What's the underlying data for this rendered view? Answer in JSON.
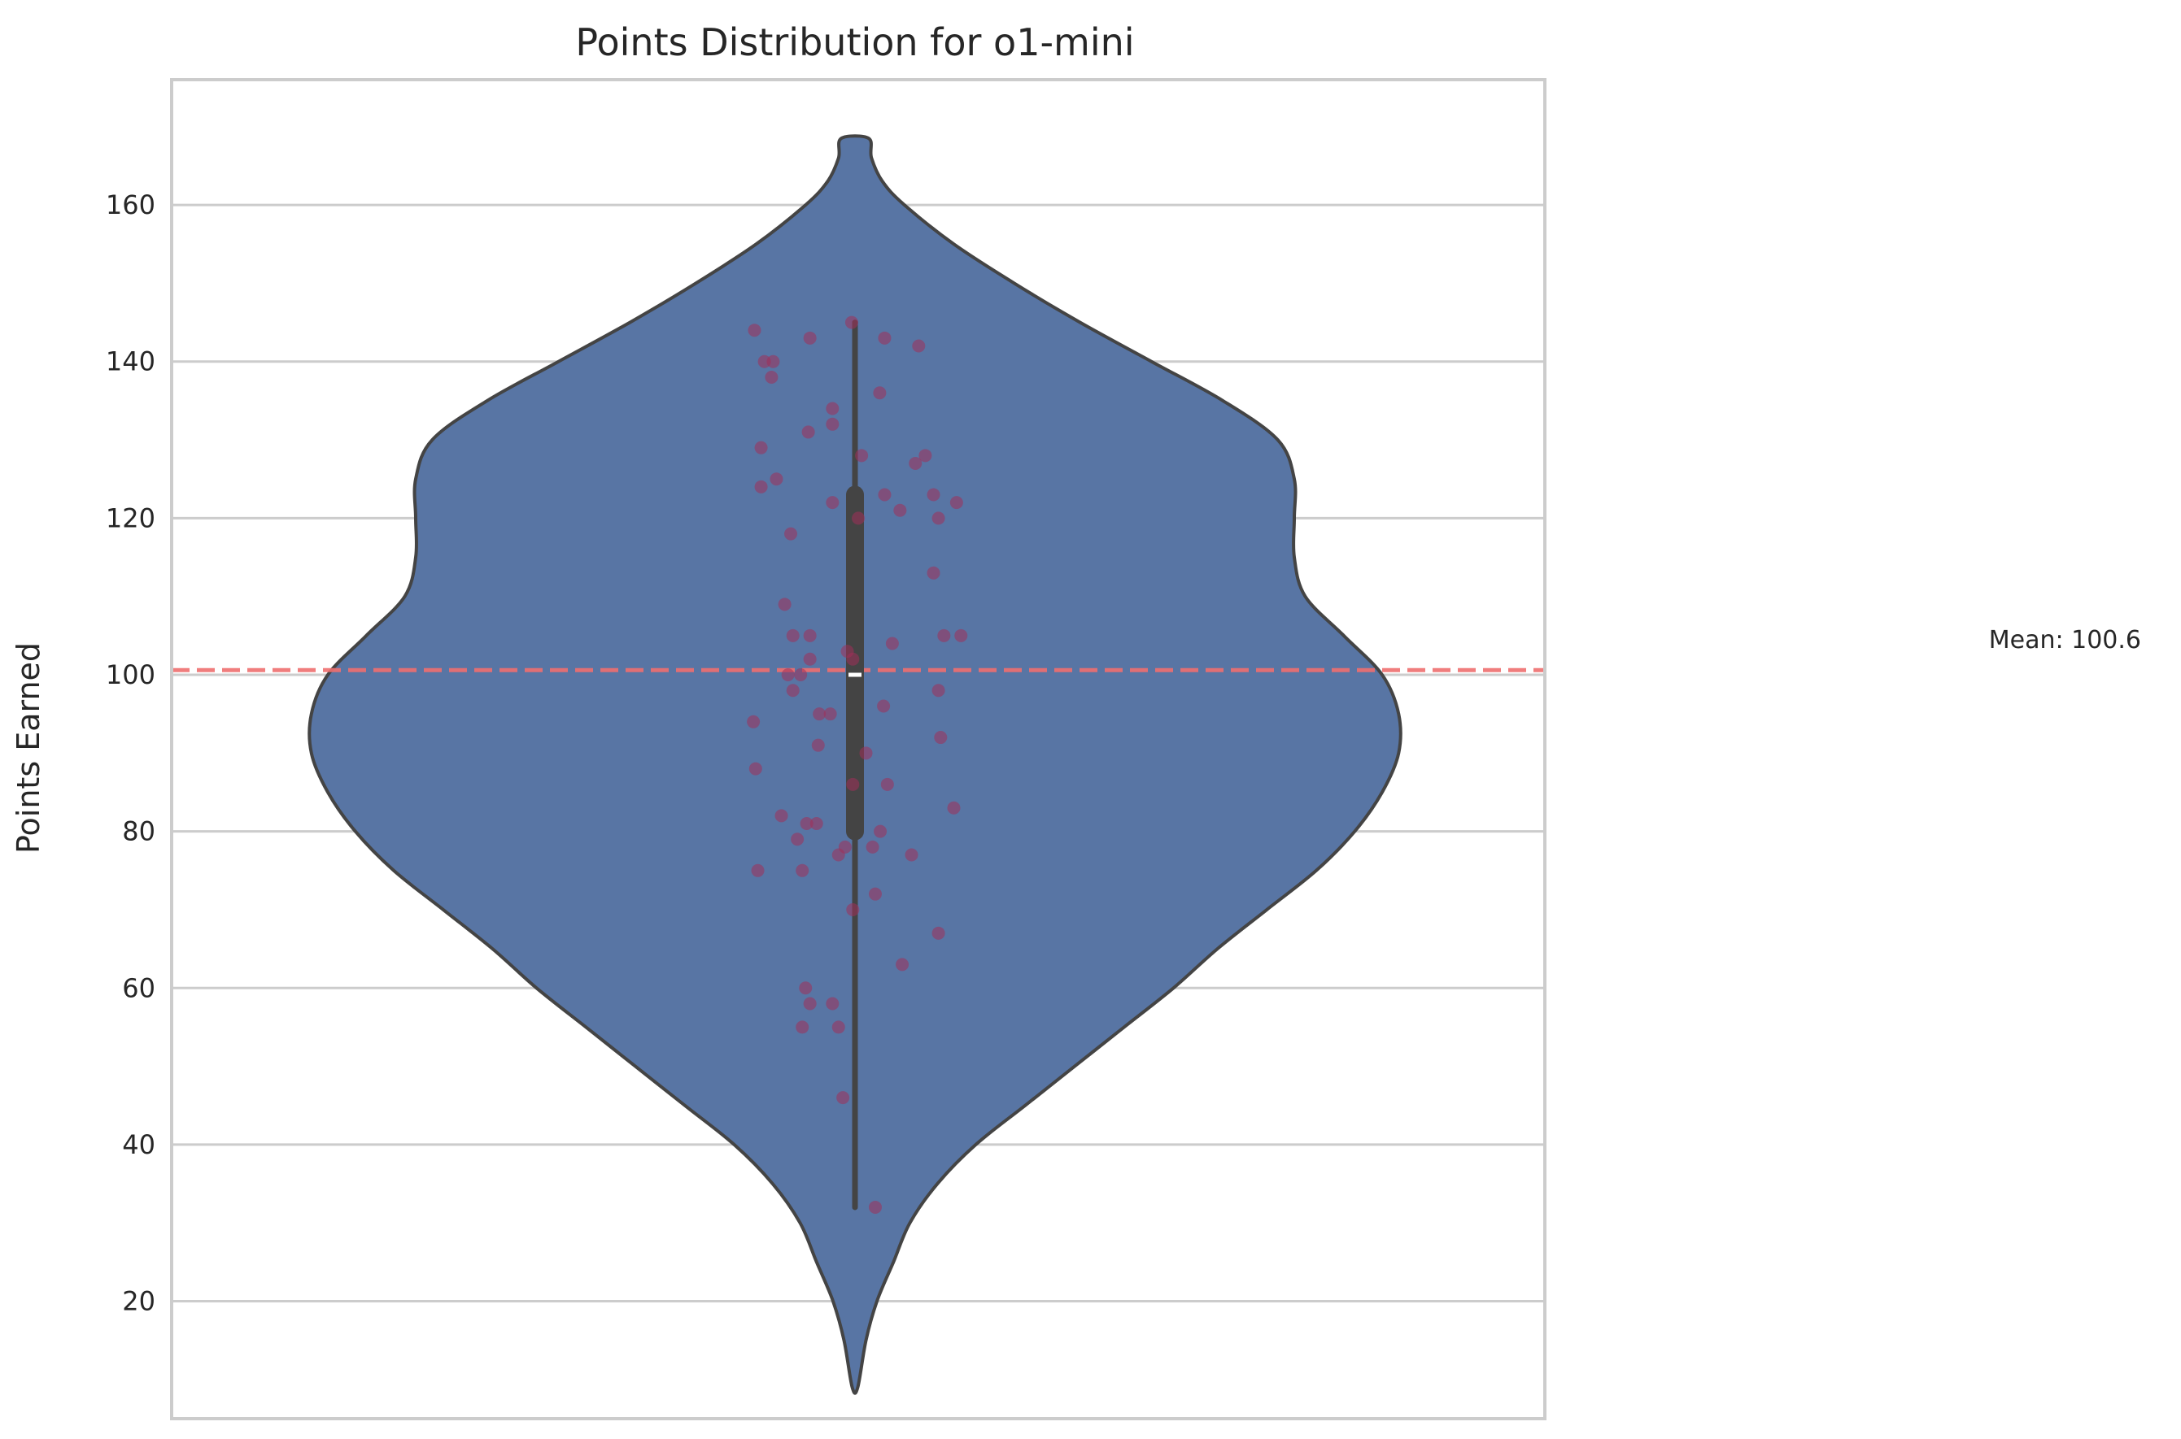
{
  "chart_data": {
    "type": "violin",
    "title": "Points Distribution for o1-mini",
    "xlabel": "",
    "ylabel": "Points Earned",
    "ylim": [
      5,
      176
    ],
    "yticks": [
      20,
      40,
      60,
      80,
      100,
      120,
      140,
      160
    ],
    "grid": true,
    "colors": {
      "violin_fill": "#5875a4",
      "violin_edge": "#444444",
      "box": "#444444",
      "median": "#ffffff",
      "points": "#a0305a",
      "mean_line": "#ef6f6f",
      "grid": "#cccccc",
      "frame": "#cccccc"
    },
    "box": {
      "q1": 80,
      "median": 100,
      "q3": 123,
      "whisker_low": 32,
      "whisker_high": 145
    },
    "mean": {
      "value": 100.6,
      "label": "Mean: 100.6"
    },
    "violin_profile": {
      "y": [
        9,
        15,
        20,
        25,
        30,
        35,
        40,
        45,
        50,
        55,
        60,
        65,
        70,
        75,
        80,
        85,
        90,
        95,
        100,
        105,
        110,
        115,
        120,
        125,
        130,
        135,
        140,
        145,
        150,
        155,
        160,
        163,
        166,
        168.5
      ],
      "half_width": [
        0.005,
        0.02,
        0.04,
        0.07,
        0.1,
        0.15,
        0.22,
        0.31,
        0.4,
        0.49,
        0.58,
        0.66,
        0.75,
        0.84,
        0.91,
        0.96,
        0.99,
        0.99,
        0.96,
        0.89,
        0.82,
        0.8,
        0.8,
        0.8,
        0.77,
        0.67,
        0.54,
        0.41,
        0.29,
        0.18,
        0.09,
        0.05,
        0.03,
        0.025
      ]
    },
    "points": [
      {
        "x": -0.183,
        "y": 144
      },
      {
        "x": -0.165,
        "y": 140
      },
      {
        "x": -0.149,
        "y": 140
      },
      {
        "x": -0.152,
        "y": 138
      },
      {
        "x": -0.082,
        "y": 143
      },
      {
        "x": -0.006,
        "y": 145
      },
      {
        "x": 0.054,
        "y": 143
      },
      {
        "x": 0.116,
        "y": 142
      },
      {
        "x": 0.045,
        "y": 136
      },
      {
        "x": -0.041,
        "y": 134
      },
      {
        "x": -0.041,
        "y": 132
      },
      {
        "x": -0.085,
        "y": 131
      },
      {
        "x": -0.171,
        "y": 129
      },
      {
        "x": 0.012,
        "y": 128
      },
      {
        "x": 0.128,
        "y": 128
      },
      {
        "x": 0.11,
        "y": 127
      },
      {
        "x": -0.143,
        "y": 125
      },
      {
        "x": -0.171,
        "y": 124
      },
      {
        "x": 0.054,
        "y": 123
      },
      {
        "x": 0.143,
        "y": 123
      },
      {
        "x": -0.041,
        "y": 122
      },
      {
        "x": 0.185,
        "y": 122
      },
      {
        "x": 0.082,
        "y": 121
      },
      {
        "x": 0.152,
        "y": 120
      },
      {
        "x": 0.006,
        "y": 120
      },
      {
        "x": -0.117,
        "y": 118
      },
      {
        "x": 0.143,
        "y": 113
      },
      {
        "x": -0.128,
        "y": 109
      },
      {
        "x": -0.113,
        "y": 105
      },
      {
        "x": -0.082,
        "y": 105
      },
      {
        "x": 0.162,
        "y": 105
      },
      {
        "x": 0.193,
        "y": 105
      },
      {
        "x": 0.068,
        "y": 104
      },
      {
        "x": -0.014,
        "y": 103
      },
      {
        "x": -0.004,
        "y": 102
      },
      {
        "x": -0.082,
        "y": 102
      },
      {
        "x": -0.122,
        "y": 100
      },
      {
        "x": -0.099,
        "y": 100
      },
      {
        "x": -0.113,
        "y": 98
      },
      {
        "x": 0.152,
        "y": 98
      },
      {
        "x": 0.052,
        "y": 96
      },
      {
        "x": -0.065,
        "y": 95
      },
      {
        "x": -0.045,
        "y": 95
      },
      {
        "x": -0.185,
        "y": 94
      },
      {
        "x": 0.156,
        "y": 92
      },
      {
        "x": -0.067,
        "y": 91
      },
      {
        "x": 0.02,
        "y": 90
      },
      {
        "x": -0.181,
        "y": 88
      },
      {
        "x": -0.004,
        "y": 86
      },
      {
        "x": 0.059,
        "y": 86
      },
      {
        "x": 0.18,
        "y": 83
      },
      {
        "x": -0.134,
        "y": 82
      },
      {
        "x": -0.088,
        "y": 81
      },
      {
        "x": -0.07,
        "y": 81
      },
      {
        "x": 0.046,
        "y": 80
      },
      {
        "x": -0.105,
        "y": 79
      },
      {
        "x": 0.032,
        "y": 78
      },
      {
        "x": -0.018,
        "y": 78
      },
      {
        "x": -0.03,
        "y": 77
      },
      {
        "x": 0.103,
        "y": 77
      },
      {
        "x": -0.177,
        "y": 75
      },
      {
        "x": -0.096,
        "y": 75
      },
      {
        "x": 0.037,
        "y": 72
      },
      {
        "x": -0.004,
        "y": 70
      },
      {
        "x": 0.152,
        "y": 67
      },
      {
        "x": 0.086,
        "y": 63
      },
      {
        "x": -0.09,
        "y": 60
      },
      {
        "x": -0.082,
        "y": 58
      },
      {
        "x": -0.041,
        "y": 58
      },
      {
        "x": -0.096,
        "y": 55
      },
      {
        "x": -0.03,
        "y": 55
      },
      {
        "x": -0.022,
        "y": 46
      },
      {
        "x": 0.037,
        "y": 32
      }
    ]
  }
}
